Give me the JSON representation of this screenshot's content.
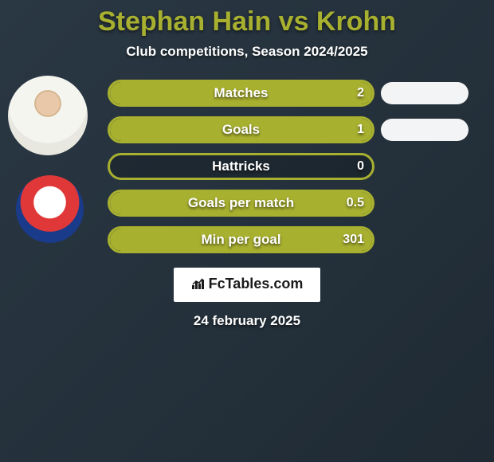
{
  "title": "Stephan Hain vs Krohn",
  "subtitle": "Club competitions, Season 2024/2025",
  "brand": "FcTables.com",
  "date": "24 february 2025",
  "accent_color": "#a8b030",
  "pill_border_color": "#a8b030",
  "pill_fill_color": "#a8b030",
  "pill_empty_bg": "rgba(0,0,0,0.2)",
  "mini_pill_bg": "#ffffff",
  "stats": [
    {
      "label": "Matches",
      "value_left": "2",
      "fill_pct": 100,
      "show_right": true
    },
    {
      "label": "Goals",
      "value_left": "1",
      "fill_pct": 100,
      "show_right": true
    },
    {
      "label": "Hattricks",
      "value_left": "0",
      "fill_pct": 0,
      "show_right": false
    },
    {
      "label": "Goals per match",
      "value_left": "0.5",
      "fill_pct": 100,
      "show_right": false
    },
    {
      "label": "Min per goal",
      "value_left": "301",
      "fill_pct": 100,
      "show_right": false
    }
  ]
}
